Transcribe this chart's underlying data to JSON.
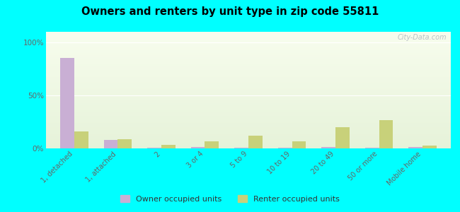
{
  "title": "Owners and renters by unit type in zip code 55811",
  "categories": [
    "1, detached",
    "1, attached",
    "2",
    "3 or 4",
    "5 to 9",
    "10 to 19",
    "20 to 49",
    "50 or more",
    "Mobile home"
  ],
  "owner_values": [
    85,
    8,
    0.5,
    1.5,
    1,
    0.5,
    1.5,
    0.5,
    1.5
  ],
  "renter_values": [
    16,
    9,
    3.5,
    6.5,
    12,
    7,
    20,
    27,
    3
  ],
  "owner_color": "#c9afd4",
  "renter_color": "#c8d17a",
  "background_color": "#00ffff",
  "ylabel_ticks": [
    "0%",
    "50%",
    "100%"
  ],
  "ytick_values": [
    0,
    50,
    100
  ],
  "ylim": [
    0,
    110
  ],
  "watermark": "City-Data.com",
  "legend_owner": "Owner occupied units",
  "legend_renter": "Renter occupied units",
  "bar_width": 0.32
}
